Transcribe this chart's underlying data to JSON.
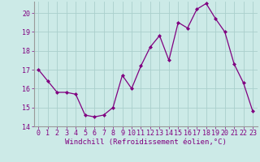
{
  "x": [
    0,
    1,
    2,
    3,
    4,
    5,
    6,
    7,
    8,
    9,
    10,
    11,
    12,
    13,
    14,
    15,
    16,
    17,
    18,
    19,
    20,
    21,
    22,
    23
  ],
  "y": [
    17.0,
    16.4,
    15.8,
    15.8,
    15.7,
    14.6,
    14.5,
    14.6,
    15.0,
    16.7,
    16.0,
    17.2,
    18.2,
    18.8,
    17.5,
    19.5,
    19.2,
    20.2,
    20.5,
    19.7,
    19.0,
    17.3,
    16.3,
    14.8
  ],
  "line_color": "#800080",
  "marker": "D",
  "marker_size": 2,
  "bg_color": "#cceae7",
  "grid_color": "#aacfcc",
  "xlabel": "Windchill (Refroidissement éolien,°C)",
  "ylim": [
    14,
    20.6
  ],
  "xlim": [
    -0.5,
    23.5
  ],
  "yticks": [
    14,
    15,
    16,
    17,
    18,
    19,
    20
  ],
  "xticks": [
    0,
    1,
    2,
    3,
    4,
    5,
    6,
    7,
    8,
    9,
    10,
    11,
    12,
    13,
    14,
    15,
    16,
    17,
    18,
    19,
    20,
    21,
    22,
    23
  ],
  "xlabel_color": "#800080",
  "tick_color": "#800080",
  "label_fontsize": 6.5,
  "tick_fontsize": 6,
  "spine_color": "#999999"
}
